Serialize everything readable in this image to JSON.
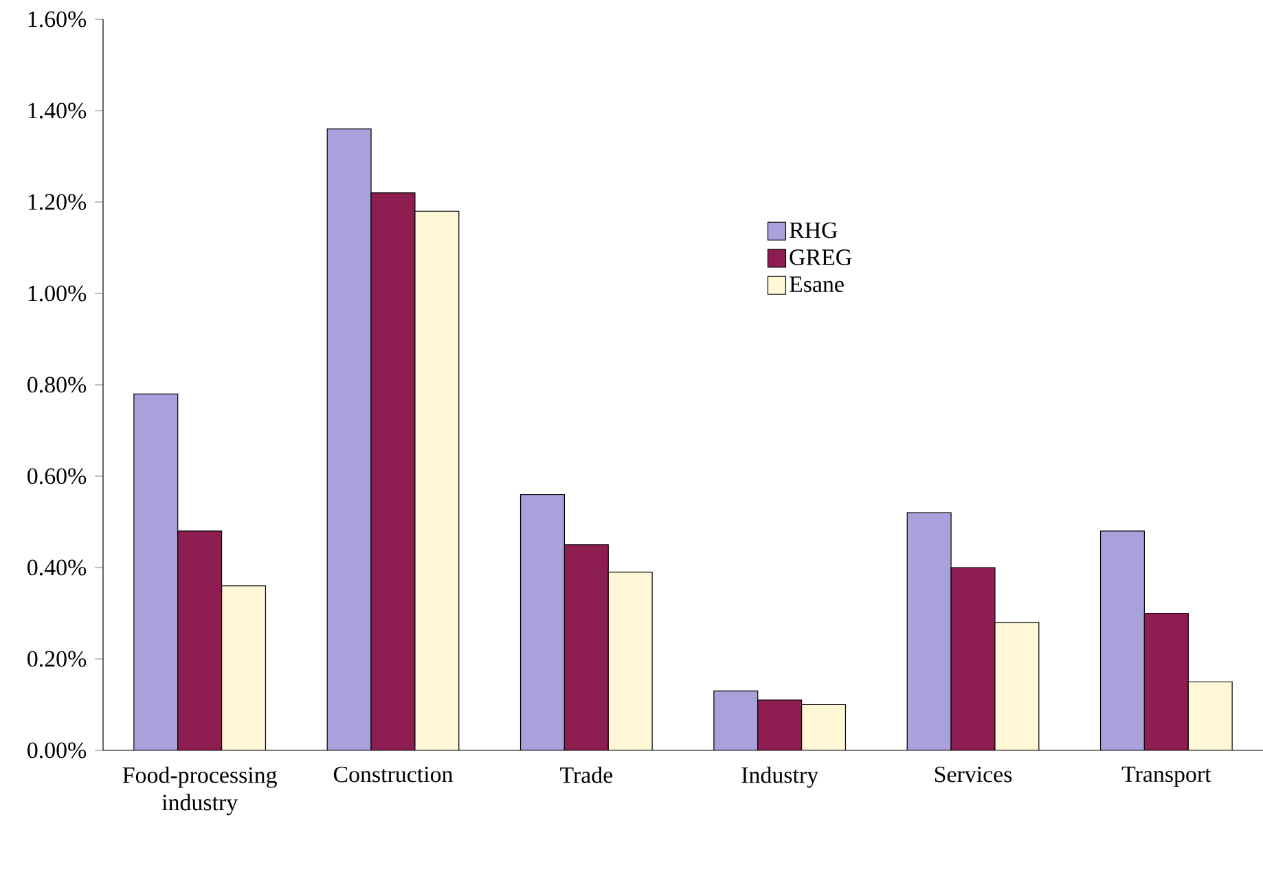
{
  "chart_data": {
    "type": "bar",
    "categories": [
      "Food-processing industry",
      "Construction",
      "Trade",
      "Industry",
      "Services",
      "Transport"
    ],
    "series": [
      {
        "name": "RHG",
        "color": "#a9a1dc",
        "values": [
          0.78,
          1.36,
          0.56,
          0.13,
          0.52,
          0.48
        ]
      },
      {
        "name": "GREG",
        "color": "#8e1e52",
        "values": [
          0.48,
          1.22,
          0.45,
          0.11,
          0.4,
          0.3
        ]
      },
      {
        "name": "Esane",
        "color": "#fff7d6",
        "values": [
          0.36,
          1.18,
          0.39,
          0.1,
          0.28,
          0.15
        ]
      }
    ],
    "ylim": [
      0,
      1.6
    ],
    "yticks": [
      {
        "value": 0,
        "label": "0.00%"
      },
      {
        "value": 0.2,
        "label": "0.20%"
      },
      {
        "value": 0.4,
        "label": "0.40%"
      },
      {
        "value": 0.6,
        "label": "0.60%"
      },
      {
        "value": 0.8,
        "label": "0.80%"
      },
      {
        "value": 1.0,
        "label": "1.00%"
      },
      {
        "value": 1.2,
        "label": "1.20%"
      },
      {
        "value": 1.4,
        "label": "1.40%"
      },
      {
        "value": 1.6,
        "label": "1.60%"
      }
    ],
    "legend": "top",
    "grid": false
  }
}
